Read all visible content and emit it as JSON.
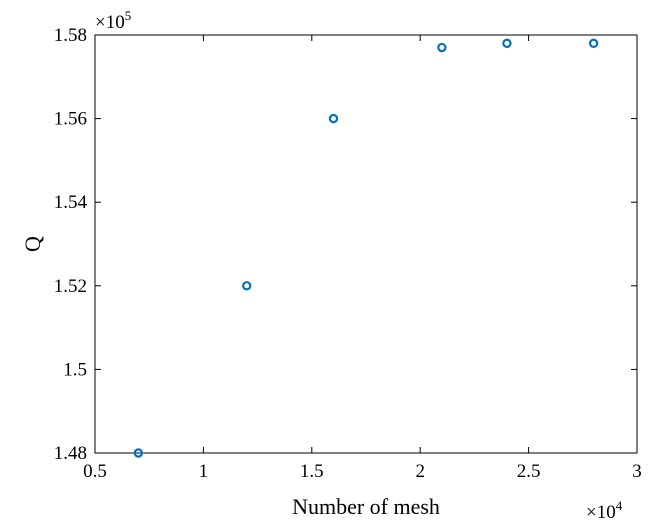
{
  "chart_data": {
    "type": "scatter",
    "title": "",
    "xlabel": "Number of mesh",
    "ylabel": "Q",
    "x_multiplier": {
      "base": "×10",
      "exp": "4"
    },
    "y_multiplier": {
      "base": "×10",
      "exp": "5"
    },
    "xlim": [
      0.5,
      3
    ],
    "ylim": [
      1.48,
      1.58
    ],
    "xticks": [
      0.5,
      1,
      1.5,
      2,
      2.5,
      3
    ],
    "xtick_labels": [
      "0.5",
      "1",
      "1.5",
      "2",
      "2.5",
      "3"
    ],
    "yticks": [
      1.48,
      1.5,
      1.52,
      1.54,
      1.56,
      1.58
    ],
    "ytick_labels": [
      "1.48",
      "1.5",
      "1.52",
      "1.54",
      "1.56",
      "1.58"
    ],
    "grid": false,
    "marker": "circle-open",
    "color": "#0072BD",
    "points": [
      {
        "x": 0.7,
        "y": 1.48
      },
      {
        "x": 1.2,
        "y": 1.52
      },
      {
        "x": 1.6,
        "y": 1.56
      },
      {
        "x": 2.1,
        "y": 1.577
      },
      {
        "x": 2.4,
        "y": 1.578
      },
      {
        "x": 2.8,
        "y": 1.578
      }
    ]
  }
}
